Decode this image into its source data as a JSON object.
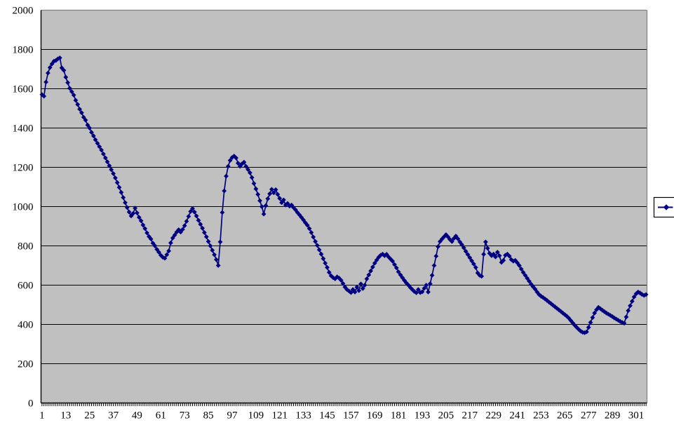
{
  "chart_data": {
    "type": "line",
    "title": "",
    "xlabel": "",
    "ylabel": "",
    "ylim": [
      0,
      2000
    ],
    "y_ticks": [
      0,
      200,
      400,
      600,
      800,
      1000,
      1200,
      1400,
      1600,
      1800,
      2000
    ],
    "x_tick_step": 12,
    "x_tick_labels": [
      "1",
      "13",
      "25",
      "37",
      "49",
      "61",
      "73",
      "85",
      "97",
      "109",
      "121",
      "133",
      "145",
      "157",
      "169",
      "181",
      "193",
      "205",
      "217",
      "229",
      "241",
      "253",
      "265",
      "277",
      "289",
      "301"
    ],
    "grid": "horizontal",
    "marker": "diamond",
    "legend": {
      "position": "right",
      "visible": true,
      "label": ""
    },
    "colors": {
      "series": "#000080",
      "plot_bg": "#c0c0c0",
      "gridline": "#000000",
      "axis": "#000000",
      "plot_border": "#808080",
      "legend_bg": "#ffffff",
      "legend_border": "#000000",
      "canvas_bg": "#ffffff"
    },
    "values": [
      1570,
      1562,
      1634,
      1680,
      1708,
      1726,
      1740,
      1744,
      1752,
      1757,
      1706,
      1694,
      1659,
      1631,
      1602,
      1585,
      1568,
      1541,
      1520,
      1496,
      1478,
      1455,
      1440,
      1415,
      1400,
      1378,
      1360,
      1340,
      1322,
      1305,
      1288,
      1268,
      1248,
      1228,
      1208,
      1188,
      1168,
      1146,
      1122,
      1098,
      1072,
      1046,
      1020,
      995,
      972,
      952,
      965,
      992,
      968,
      945,
      928,
      906,
      888,
      866,
      848,
      835,
      814,
      800,
      782,
      768,
      752,
      742,
      737,
      755,
      774,
      815,
      840,
      855,
      870,
      882,
      870,
      884,
      903,
      925,
      950,
      975,
      990,
      972,
      952,
      930,
      910,
      890,
      868,
      846,
      822,
      800,
      778,
      755,
      730,
      700,
      820,
      970,
      1080,
      1155,
      1205,
      1235,
      1250,
      1257,
      1248,
      1221,
      1205,
      1218,
      1226,
      1205,
      1189,
      1172,
      1148,
      1118,
      1090,
      1062,
      1030,
      1000,
      962,
      1005,
      1040,
      1065,
      1088,
      1070,
      1086,
      1062,
      1042,
      1020,
      1034,
      1008,
      1016,
      1002,
      1008,
      995,
      984,
      970,
      958,
      945,
      932,
      918,
      905,
      888,
      868,
      845,
      822,
      802,
      780,
      758,
      735,
      712,
      690,
      665,
      648,
      638,
      632,
      642,
      636,
      625,
      608,
      590,
      578,
      570,
      562,
      578,
      565,
      590,
      572,
      606,
      583,
      600,
      632,
      652,
      672,
      692,
      712,
      728,
      742,
      752,
      758,
      750,
      757,
      744,
      733,
      722,
      705,
      688,
      668,
      652,
      638,
      624,
      611,
      600,
      588,
      578,
      568,
      561,
      578,
      562,
      566,
      584,
      600,
      565,
      607,
      650,
      700,
      748,
      796,
      822,
      835,
      846,
      857,
      846,
      832,
      822,
      838,
      850,
      836,
      820,
      806,
      790,
      772,
      756,
      740,
      724,
      708,
      690,
      662,
      650,
      645,
      757,
      820,
      788,
      762,
      750,
      758,
      744,
      768,
      750,
      716,
      726,
      752,
      758,
      748,
      730,
      722,
      726,
      714,
      700,
      682,
      665,
      650,
      635,
      620,
      605,
      592,
      580,
      565,
      552,
      544,
      537,
      530,
      522,
      514,
      506,
      498,
      490,
      482,
      474,
      466,
      458,
      450,
      442,
      432,
      420,
      408,
      396,
      385,
      375,
      366,
      360,
      358,
      362,
      385,
      410,
      435,
      458,
      475,
      487,
      480,
      472,
      465,
      458,
      452,
      446,
      440,
      433,
      427,
      421,
      415,
      410,
      406,
      438,
      470,
      495,
      518,
      540,
      556,
      565,
      560,
      553,
      548,
      552
    ]
  }
}
